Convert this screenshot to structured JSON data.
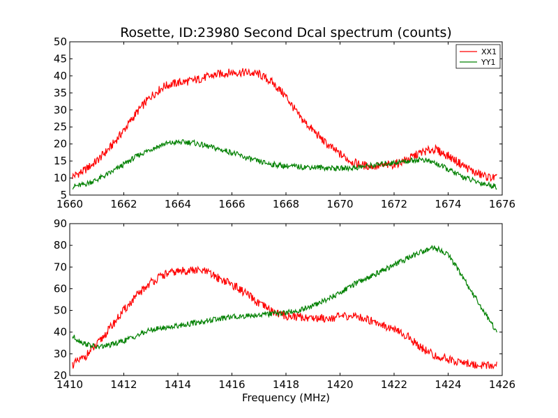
{
  "chart_data": [
    {
      "type": "line",
      "title": "Rosette, ID:23980 Second Dcal spectrum (counts)",
      "xlabel": "",
      "ylabel": "",
      "xlim": [
        1660,
        1676
      ],
      "ylim": [
        5,
        50
      ],
      "x_ticks": [
        "1660",
        "1662",
        "1664",
        "1666",
        "1668",
        "1670",
        "1672",
        "1674",
        "1676"
      ],
      "y_ticks": [
        "5",
        "10",
        "15",
        "20",
        "25",
        "30",
        "35",
        "40",
        "45",
        "50"
      ],
      "legend": {
        "position": "top-right",
        "entries": [
          "XX1",
          "YY1"
        ]
      },
      "grid": false,
      "series": [
        {
          "name": "XX1",
          "color": "#ff0000",
          "x": [
            1660.1,
            1660.5,
            1661,
            1661.5,
            1662,
            1662.5,
            1663,
            1663.5,
            1664,
            1664.5,
            1665,
            1665.5,
            1666,
            1666.5,
            1667,
            1667.5,
            1668,
            1668.5,
            1669,
            1669.5,
            1670,
            1670.5,
            1671,
            1671.5,
            1672,
            1672.5,
            1673,
            1673.5,
            1674,
            1674.5,
            1675,
            1675.5,
            1675.8
          ],
          "y": [
            10.5,
            12,
            15,
            19,
            24,
            29.5,
            34,
            37,
            38,
            38.5,
            39.5,
            40.5,
            41,
            41,
            40.5,
            38,
            34,
            28,
            24,
            20,
            17,
            14.5,
            13.5,
            13.5,
            14,
            15.5,
            17.5,
            18.5,
            16.5,
            14,
            11.5,
            10.2,
            10
          ]
        },
        {
          "name": "YY1",
          "color": "#008000",
          "x": [
            1660.1,
            1660.5,
            1661,
            1661.5,
            1662,
            1662.5,
            1663,
            1663.5,
            1664,
            1664.5,
            1665,
            1665.5,
            1666,
            1666.5,
            1667,
            1667.5,
            1668,
            1668.5,
            1669,
            1669.5,
            1670,
            1670.5,
            1671,
            1671.5,
            1672,
            1672.5,
            1673,
            1673.5,
            1674,
            1674.5,
            1675,
            1675.5,
            1675.8
          ],
          "y": [
            7.5,
            8,
            9.5,
            11.5,
            14,
            16.5,
            18.5,
            20,
            20.5,
            20.5,
            19.5,
            18.5,
            17.5,
            16,
            14.8,
            14,
            13.5,
            13.3,
            13.2,
            13,
            12.8,
            13,
            13.5,
            14,
            14.5,
            15,
            15.5,
            14.5,
            12.5,
            10.5,
            9,
            8,
            7.5
          ]
        }
      ]
    },
    {
      "type": "line",
      "title": "",
      "xlabel": "Frequency (MHz)",
      "ylabel": "",
      "xlim": [
        1410,
        1426
      ],
      "ylim": [
        20,
        90
      ],
      "x_ticks": [
        "1410",
        "1412",
        "1414",
        "1416",
        "1418",
        "1420",
        "1422",
        "1424",
        "1426"
      ],
      "y_ticks": [
        "20",
        "30",
        "40",
        "50",
        "60",
        "70",
        "80",
        "90"
      ],
      "grid": false,
      "series": [
        {
          "name": "XX1",
          "color": "#ff0000",
          "x": [
            1410.1,
            1410.5,
            1411,
            1411.5,
            1412,
            1412.5,
            1413,
            1413.5,
            1414,
            1414.5,
            1415,
            1415.5,
            1416,
            1416.5,
            1417,
            1417.5,
            1418,
            1418.5,
            1419,
            1419.5,
            1420,
            1420.5,
            1421,
            1421.5,
            1422,
            1422.5,
            1423,
            1423.5,
            1424,
            1424.5,
            1425,
            1425.5,
            1425.8
          ],
          "y": [
            25,
            28,
            34,
            42,
            50,
            57,
            63,
            66.5,
            68,
            68.5,
            68,
            65,
            62,
            58,
            53,
            49.5,
            47.5,
            47,
            46.5,
            46.5,
            47,
            47.5,
            46,
            44,
            41,
            38,
            33,
            29,
            27.5,
            26,
            25,
            24.5,
            25
          ]
        },
        {
          "name": "YY1",
          "color": "#008000",
          "x": [
            1410.1,
            1410.5,
            1411,
            1411.5,
            1412,
            1412.5,
            1413,
            1413.5,
            1414,
            1414.5,
            1415,
            1415.5,
            1416,
            1416.5,
            1417,
            1417.5,
            1418,
            1418.5,
            1419,
            1419.5,
            1420,
            1420.5,
            1421,
            1421.5,
            1422,
            1422.5,
            1423,
            1423.5,
            1424,
            1424.5,
            1425,
            1425.5,
            1425.8
          ],
          "y": [
            38,
            35,
            33,
            34,
            36,
            38.5,
            41,
            42,
            43,
            44,
            45,
            46,
            47,
            47.5,
            48,
            48.5,
            49,
            50,
            52,
            55,
            58,
            62,
            65,
            68,
            71,
            74,
            77,
            79,
            76,
            66,
            56,
            46,
            40
          ]
        }
      ]
    }
  ]
}
